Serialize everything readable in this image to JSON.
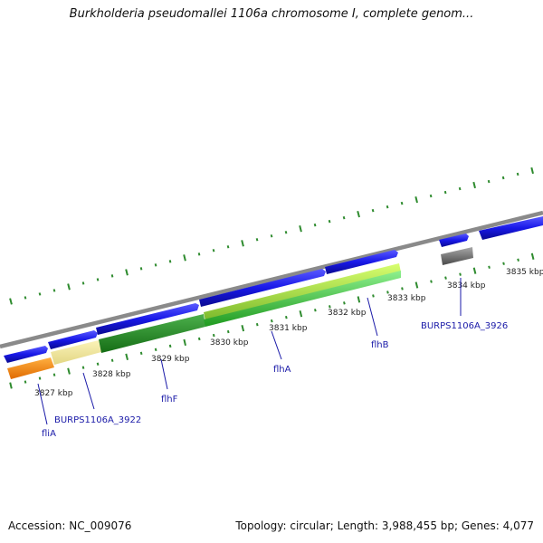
{
  "title": "Burkholderia pseudomallei 1106a chromosome I, complete genom...",
  "footer": {
    "accession": "Accession: NC_009076",
    "stats": "Topology: circular; Length: 3,988,455 bp; Genes: 4,077"
  },
  "axis_labels": [
    "3827 kbp",
    "3828 kbp",
    "3829 kbp",
    "3830 kbp",
    "3831 kbp",
    "3832 kbp",
    "3833 kbp",
    "3834 kbp",
    "3835 kbp"
  ],
  "gene_labels": [
    "fliA",
    "BURPS1106A_3922",
    "flhF",
    "flhA",
    "flhB",
    "BURPS1106A_3926"
  ],
  "colors": {
    "forward_genes": "#1a1ae6",
    "backbone": "#8a8a8a",
    "fliA": "#ff8c00",
    "BURPS1106A_3922": "#f0e68c",
    "flhF": "#228b22",
    "flhA": "#9acd32",
    "flhB": "#32cd32",
    "BURPS1106A_3926": "#707070",
    "ticks": "#2e8b2e",
    "label_line": "#1a1aa8"
  }
}
